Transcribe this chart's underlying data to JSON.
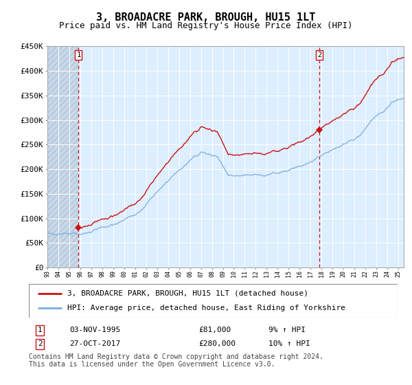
{
  "title": "3, BROADACRE PARK, BROUGH, HU15 1LT",
  "subtitle": "Price paid vs. HM Land Registry's House Price Index (HPI)",
  "yticks": [
    0,
    50000,
    100000,
    150000,
    200000,
    250000,
    300000,
    350000,
    400000,
    450000
  ],
  "ytick_labels": [
    "£0",
    "£50K",
    "£100K",
    "£150K",
    "£200K",
    "£250K",
    "£300K",
    "£350K",
    "£400K",
    "£450K"
  ],
  "xmin": 1993.0,
  "xmax": 2025.5,
  "ymin": 0,
  "ymax": 450000,
  "sale1_x": 1995.84,
  "sale1_y": 81000,
  "sale2_x": 2017.82,
  "sale2_y": 280000,
  "hpi_color": "#7aaddc",
  "price_color": "#cc1111",
  "grid_color": "#cccccc",
  "bg_color": "#ddeeff",
  "hatch_color": "#c8d8e8",
  "legend_label1": "3, BROADACRE PARK, BROUGH, HU15 1LT (detached house)",
  "legend_label2": "HPI: Average price, detached house, East Riding of Yorkshire",
  "table_row1": [
    "1",
    "03-NOV-1995",
    "£81,000",
    "9% ↑ HPI"
  ],
  "table_row2": [
    "2",
    "27-OCT-2017",
    "£280,000",
    "10% ↑ HPI"
  ],
  "footnote": "Contains HM Land Registry data © Crown copyright and database right 2024.\nThis data is licensed under the Open Government Licence v3.0.",
  "title_fontsize": 11,
  "subtitle_fontsize": 9,
  "tick_fontsize": 8,
  "legend_fontsize": 8,
  "table_fontsize": 8,
  "footnote_fontsize": 7
}
